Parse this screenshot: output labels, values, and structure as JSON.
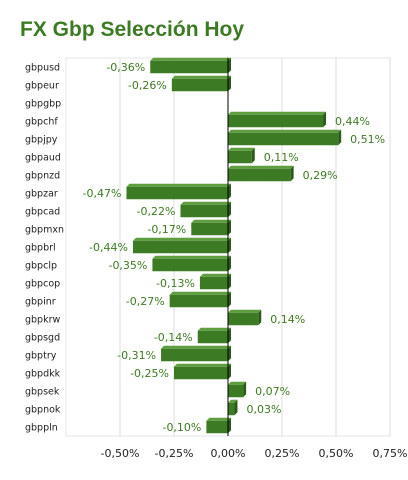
{
  "title": "FX Gbp Selección Hoy",
  "colors": {
    "bar": "#3d7a24",
    "bar_top": "#5f9e3e",
    "bar_side": "#2b5a19",
    "text_green": "#3d7a24",
    "grid": "#dddddd",
    "axis": "#000000"
  },
  "chart_data": {
    "type": "bar",
    "orientation": "horizontal",
    "title": "FX Gbp Selección Hoy",
    "xlabel": "",
    "ylabel": "",
    "xlim": [
      -0.75,
      0.75
    ],
    "grid": true,
    "categories": [
      "gbpusd",
      "gbpeur",
      "gbpgbp",
      "gbpchf",
      "gbpjpy",
      "gbpaud",
      "gbpnzd",
      "gbpzar",
      "gbpcad",
      "gbpmxn",
      "gbpbrl",
      "gbpclp",
      "gbpcop",
      "gbpinr",
      "gbpkrw",
      "gbpsgd",
      "gbptry",
      "gbpdkk",
      "gbpsek",
      "gbpnok",
      "gbppln"
    ],
    "values": [
      -0.36,
      -0.26,
      0,
      0.44,
      0.51,
      0.11,
      0.29,
      -0.47,
      -0.22,
      -0.17,
      -0.44,
      -0.35,
      -0.13,
      -0.27,
      0.14,
      -0.14,
      -0.31,
      -0.25,
      0.07,
      0.03,
      -0.1
    ],
    "data_labels": [
      "-0,36%",
      "-0,26%",
      "",
      "0,44%",
      "0,51%",
      "0,11%",
      "0,29%",
      "-0,47%",
      "-0,22%",
      "-0,17%",
      "-0,44%",
      "-0,35%",
      "-0,13%",
      "-0,27%",
      "0,14%",
      "-0,14%",
      "-0,31%",
      "-0,25%",
      "0,07%",
      "0,03%",
      "-0,10%"
    ],
    "x_ticks": [
      -0.5,
      -0.25,
      0,
      0.25,
      0.5,
      0.75
    ],
    "x_tick_labels": [
      "-0,50%",
      "-0,25%",
      "0,00%",
      "0,25%",
      "0,50%",
      "0,75%"
    ]
  }
}
